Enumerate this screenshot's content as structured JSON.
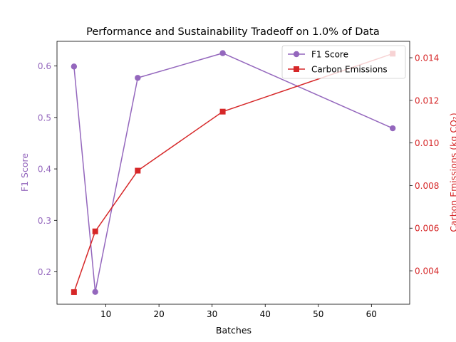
{
  "chart_data": {
    "type": "line",
    "title": "Performance and Sustainability Tradeoff on 1.0% of Data",
    "xlabel": "Batches",
    "ylabel_left": "F1 Score",
    "ylabel_right": "Carbon Emissions (kg CO₂)",
    "xlim": [
      0.8,
      67.2
    ],
    "ylim_left": [
      0.137,
      0.648
    ],
    "ylim_right": [
      0.00243,
      0.01477
    ],
    "x_ticks": [
      10,
      20,
      30,
      40,
      50,
      60
    ],
    "y_ticks_left": [
      0.2,
      0.3,
      0.4,
      0.5,
      0.6
    ],
    "y_ticks_right": [
      0.004,
      0.006,
      0.008,
      0.01,
      0.012,
      0.014
    ],
    "y_tick_labels_left": [
      "0.2",
      "0.3",
      "0.4",
      "0.5",
      "0.6"
    ],
    "y_tick_labels_right": [
      "0.004",
      "0.006",
      "0.008",
      "0.010",
      "0.012",
      "0.014"
    ],
    "grid": false,
    "legend_position": "top-right",
    "colors": {
      "f1": "#9467bd",
      "carbon": "#d62728",
      "axis": "#000000"
    },
    "series": [
      {
        "name": "F1 Score",
        "axis": "left",
        "marker": "circle",
        "x": [
          4,
          8,
          16,
          32,
          64
        ],
        "values": [
          0.599,
          0.161,
          0.577,
          0.625,
          0.479
        ]
      },
      {
        "name": "Carbon Emissions",
        "axis": "right",
        "marker": "square",
        "x": [
          4,
          8,
          16,
          32,
          64
        ],
        "values": [
          0.003,
          0.00585,
          0.0087,
          0.01147,
          0.01419
        ]
      }
    ]
  }
}
